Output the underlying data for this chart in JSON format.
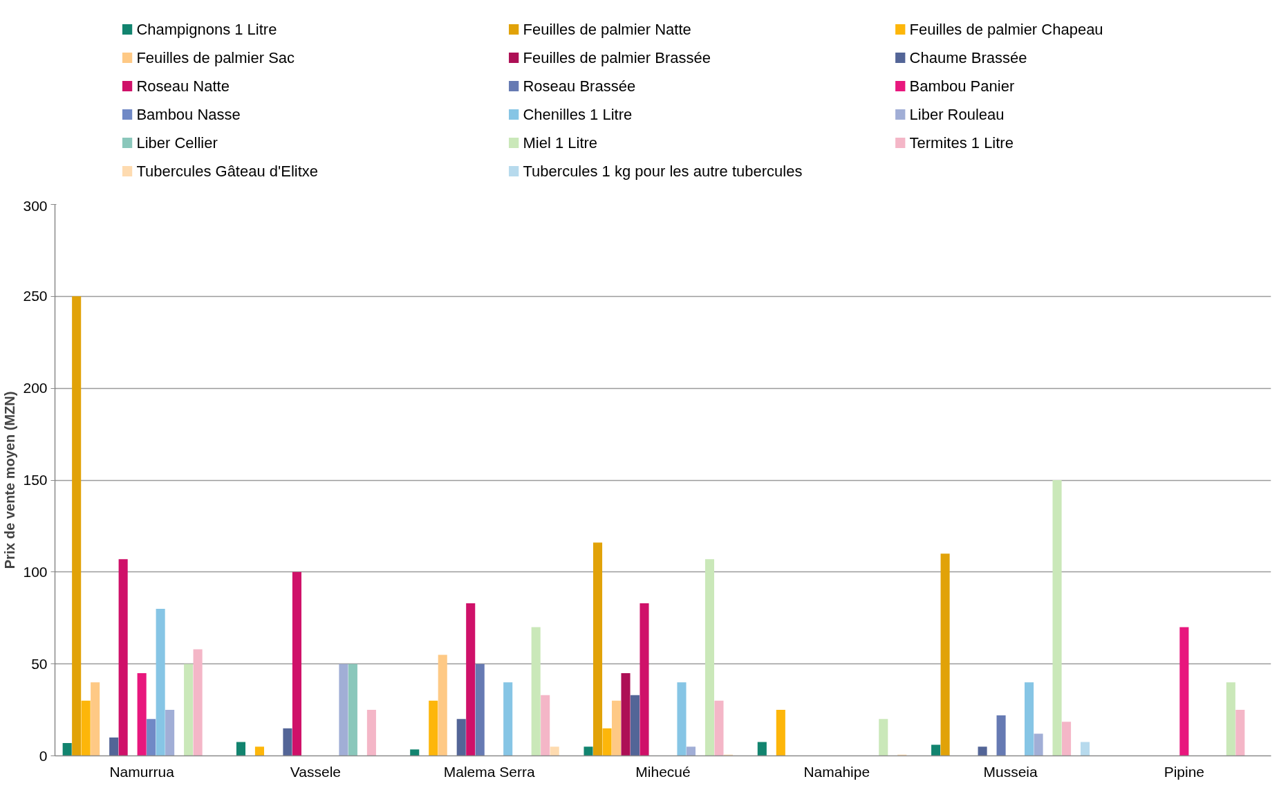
{
  "chart_data": {
    "type": "bar",
    "categories": [
      "Namurrua",
      "Vassele",
      "Malema Serra",
      "Mihecué",
      "Namahipe",
      "Musseia",
      "Pipine"
    ],
    "ylabel": "Prix de vente moyen (MZN)",
    "ylim": [
      0,
      300
    ],
    "yticks": [
      0,
      50,
      100,
      150,
      200,
      250,
      300
    ],
    "grid": "y",
    "legend": "top",
    "series": [
      {
        "name": "Champignons 1 Litre",
        "color": "#12846f",
        "values": [
          7,
          7.5,
          3.5,
          5,
          7.5,
          6,
          null
        ]
      },
      {
        "name": "Feuilles de palmier Natte",
        "color": "#e1a208",
        "values": [
          250,
          null,
          null,
          116,
          null,
          110,
          null
        ]
      },
      {
        "name": "Feuilles de palmier Chapeau",
        "color": "#fdb60a",
        "values": [
          30,
          5,
          30,
          15,
          25,
          null,
          null
        ]
      },
      {
        "name": "Feuilles de palmier Sac",
        "color": "#fec985",
        "values": [
          40,
          null,
          55,
          30,
          null,
          null,
          null
        ]
      },
      {
        "name": "Feuilles de palmier Brassée",
        "color": "#ad0f55",
        "values": [
          null,
          null,
          null,
          45,
          null,
          null,
          null
        ]
      },
      {
        "name": "Chaume Brassée",
        "color": "#536597",
        "values": [
          10,
          15,
          20,
          33,
          null,
          5,
          null
        ]
      },
      {
        "name": "Roseau Natte",
        "color": "#cf1169",
        "values": [
          107,
          100,
          83,
          83,
          null,
          null,
          null
        ]
      },
      {
        "name": "Roseau Brassée",
        "color": "#667ab3",
        "values": [
          null,
          null,
          50,
          null,
          null,
          22,
          null
        ]
      },
      {
        "name": "Bambou Panier",
        "color": "#e8177d",
        "values": [
          45,
          null,
          null,
          null,
          null,
          null,
          70
        ]
      },
      {
        "name": "Bambou Nasse",
        "color": "#7089c6",
        "values": [
          20,
          null,
          null,
          null,
          null,
          null,
          null
        ]
      },
      {
        "name": "Chenilles 1 Litre",
        "color": "#86c5e5",
        "values": [
          80,
          null,
          40,
          40,
          null,
          40,
          null
        ]
      },
      {
        "name": "Liber Rouleau",
        "color": "#a1aed6",
        "values": [
          25,
          50,
          null,
          5,
          null,
          12,
          null
        ]
      },
      {
        "name": "Liber Cellier",
        "color": "#8ac7bb",
        "values": [
          null,
          50,
          null,
          null,
          null,
          null,
          null
        ]
      },
      {
        "name": " Miel 1 Litre",
        "color": "#cae8b9",
        "values": [
          50,
          null,
          70,
          107,
          20,
          150,
          40
        ]
      },
      {
        "name": "Termites 1 Litre",
        "color": "#f4b6c7",
        "values": [
          58,
          25,
          33,
          30,
          null,
          18.5,
          25
        ]
      },
      {
        "name": "Tubercules Gâteau d'Elitxe",
        "color": "#fedbb0",
        "values": [
          null,
          null,
          5,
          0.7,
          0.7,
          null,
          null
        ]
      },
      {
        "name": "Tubercules 1 kg pour les autre tubercules",
        "color": "#b7daed",
        "values": [
          null,
          null,
          null,
          null,
          null,
          7.5,
          null
        ]
      }
    ]
  }
}
